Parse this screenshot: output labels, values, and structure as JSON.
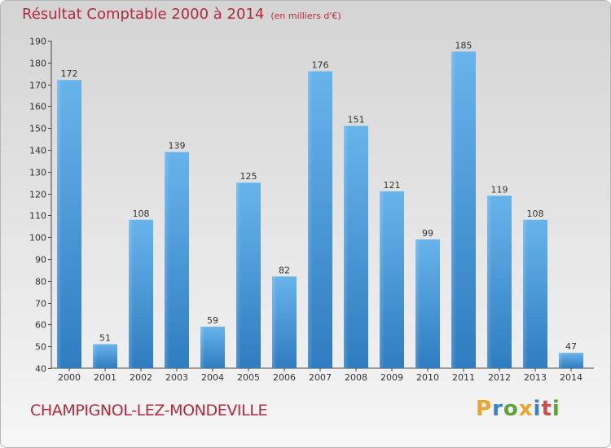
{
  "title": "Résultat Comptable 2000 à 2014",
  "subtitle": "(en milliers d'€)",
  "place": "CHAMPIGNOL-LEZ-MONDEVILLE",
  "logo": {
    "letters": [
      "P",
      "r",
      "o",
      "x",
      "i",
      "t",
      "i"
    ],
    "colors": [
      "#e8a42c",
      "#3d80c8",
      "#5ca33a",
      "#e8a42c",
      "#3d80c8",
      "#d34a4a",
      "#5ca33a"
    ]
  },
  "colors": {
    "title": "#b22a3c",
    "bar_light": "#67b4ec",
    "bar_dark": "#2f7cc0"
  },
  "chart_data": {
    "type": "bar",
    "categories": [
      "2000",
      "2001",
      "2002",
      "2003",
      "2004",
      "2005",
      "2006",
      "2007",
      "2008",
      "2009",
      "2010",
      "2011",
      "2012",
      "2013",
      "2014"
    ],
    "values": [
      172,
      51,
      108,
      139,
      59,
      125,
      82,
      176,
      151,
      121,
      99,
      185,
      119,
      108,
      47
    ],
    "y_ticks": [
      40,
      50,
      60,
      70,
      80,
      90,
      100,
      110,
      120,
      130,
      140,
      150,
      160,
      170,
      180,
      190
    ],
    "ylim": [
      40,
      190
    ],
    "grid": false
  }
}
